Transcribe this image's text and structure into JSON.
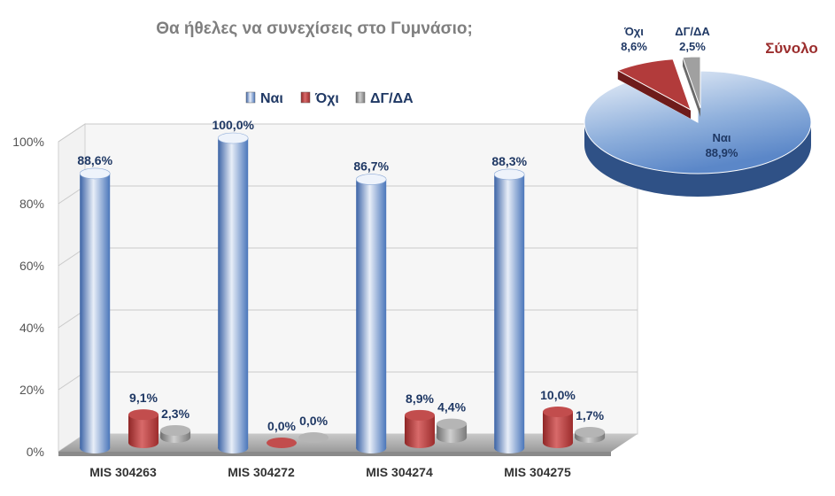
{
  "chart_data": [
    {
      "type": "bar",
      "title": "Θα ήθελες να συνεχίσεις στο Γυμνάσιο;",
      "categories": [
        "MIS 304263",
        "MIS 304272",
        "MIS 304274",
        "MIS 304275"
      ],
      "series": [
        {
          "name": "Ναι",
          "values": [
            88.6,
            100.0,
            86.7,
            88.3
          ],
          "labels": [
            "88,6%",
            "100,0%",
            "86,7%",
            "88,3%"
          ],
          "color": "#4f7fc4"
        },
        {
          "name": "Όχι",
          "values": [
            9.1,
            0.0,
            8.9,
            10.0
          ],
          "labels": [
            "9,1%",
            "0,0%",
            "8,9%",
            "10,0%"
          ],
          "color": "#b23b3b"
        },
        {
          "name": "ΔΓ/ΔΑ",
          "values": [
            2.3,
            0.0,
            4.4,
            1.7
          ],
          "labels": [
            "2,3%",
            "0,0%",
            "4,4%",
            "1,7%"
          ],
          "color": "#8f8f8f"
        }
      ],
      "yticks": [
        "0%",
        "20%",
        "40%",
        "60%",
        "80%",
        "100%"
      ],
      "ylim": [
        0,
        100
      ],
      "grid": true,
      "legend": "top"
    },
    {
      "type": "pie",
      "title": "Σύνολο",
      "slices": [
        {
          "name": "Ναι",
          "value": 88.9,
          "label": "88,9%",
          "color": "#5b87c8"
        },
        {
          "name": "Όχι",
          "value": 8.6,
          "label": "8,6%",
          "color": "#b23b3b"
        },
        {
          "name": "ΔΓ/ΔΑ",
          "value": 2.5,
          "label": "2,5%",
          "color": "#a0a0a0"
        }
      ]
    }
  ]
}
